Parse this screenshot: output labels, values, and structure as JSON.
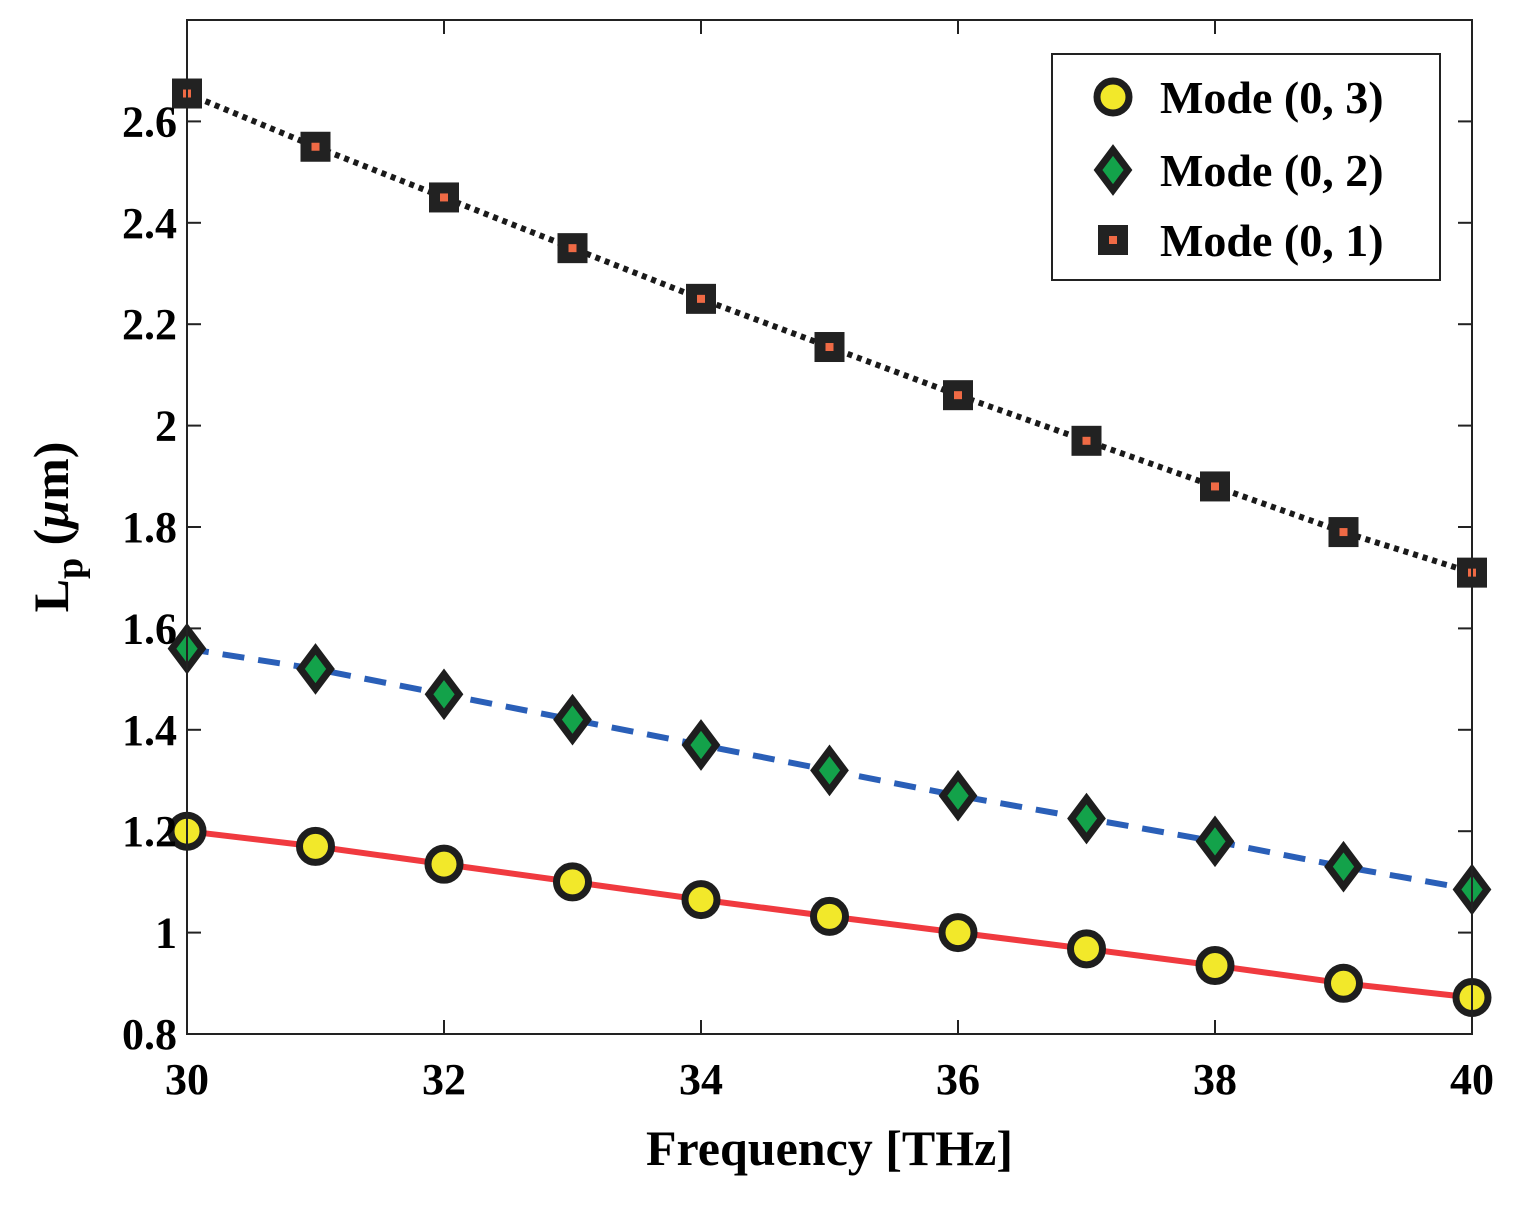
{
  "chart_data": {
    "type": "line",
    "title": "",
    "xlabel": "Frequency [THz]",
    "ylabel_main": "L",
    "ylabel_sub": "p",
    "ylabel_unit_open": " (",
    "ylabel_unit_mu": "µ",
    "ylabel_unit_rest": "m)",
    "xlim": [
      30,
      40
    ],
    "ylim": [
      0.8,
      2.8
    ],
    "xticks": [
      30,
      32,
      34,
      36,
      38,
      40
    ],
    "xtick_labels": [
      "30",
      "32",
      "34",
      "36",
      "38",
      "40"
    ],
    "yticks": [
      0.8,
      1.0,
      1.2,
      1.4,
      1.6,
      1.8,
      2.0,
      2.2,
      2.4,
      2.6
    ],
    "ytick_labels": [
      "0.8",
      "1",
      "1.2",
      "1.4",
      "1.6",
      "1.8",
      "2",
      "2.2",
      "2.4",
      "2.6"
    ],
    "grid": false,
    "legend_position": "top-right",
    "x": [
      30,
      31,
      32,
      33,
      34,
      35,
      36,
      37,
      38,
      39,
      40
    ],
    "series": [
      {
        "name": "Mode (0, 3)",
        "values": [
          1.2,
          1.17,
          1.135,
          1.1,
          1.065,
          1.032,
          1.0,
          0.968,
          0.935,
          0.9,
          0.872
        ],
        "marker": "circle",
        "line_style": "solid",
        "line_color": "#f03a3f",
        "marker_fill": "#f2e82a",
        "marker_edge": "#1e1e1e"
      },
      {
        "name": "Mode (0, 2)",
        "values": [
          1.56,
          1.52,
          1.47,
          1.42,
          1.37,
          1.32,
          1.27,
          1.225,
          1.18,
          1.13,
          1.085
        ],
        "marker": "diamond",
        "line_style": "dashed",
        "line_color": "#2a5fb8",
        "marker_fill": "#13a24a",
        "marker_edge": "#1e1e1e"
      },
      {
        "name": "Mode (0, 1)",
        "values": [
          2.655,
          2.55,
          2.45,
          2.35,
          2.25,
          2.155,
          2.06,
          1.97,
          1.88,
          1.79,
          1.71
        ],
        "marker": "square",
        "line_style": "dotted",
        "line_color": "#1a1a1a",
        "marker_fill": "#ef6a45",
        "marker_edge": "#222222"
      }
    ]
  }
}
